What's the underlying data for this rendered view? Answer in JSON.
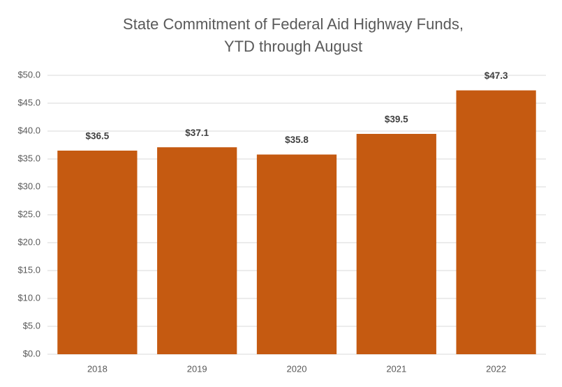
{
  "chart_data": {
    "type": "bar",
    "title": [
      "State Commitment of Federal Aid Highway Funds,",
      "YTD through August"
    ],
    "categories": [
      "2018",
      "2019",
      "2020",
      "2021",
      "2022"
    ],
    "values": [
      36.5,
      37.1,
      35.8,
      39.5,
      47.3
    ],
    "value_labels": [
      "$36.5",
      "$37.1",
      "$35.8",
      "$39.5",
      "$47.3"
    ],
    "color": "#c55a11",
    "ylim": [
      0,
      50
    ],
    "yticks": [
      {
        "value": 0,
        "label": "$0.0"
      },
      {
        "value": 5,
        "label": "$5.0"
      },
      {
        "value": 10,
        "label": "$10.0"
      },
      {
        "value": 15,
        "label": "$15.0"
      },
      {
        "value": 20,
        "label": "$20.0"
      },
      {
        "value": 25,
        "label": "$25.0"
      },
      {
        "value": 30,
        "label": "$30.0"
      },
      {
        "value": 35,
        "label": "$35.0"
      },
      {
        "value": 40,
        "label": "$40.0"
      },
      {
        "value": 45,
        "label": "$45.0"
      },
      {
        "value": 50,
        "label": "$50.0"
      }
    ],
    "grid": true
  }
}
